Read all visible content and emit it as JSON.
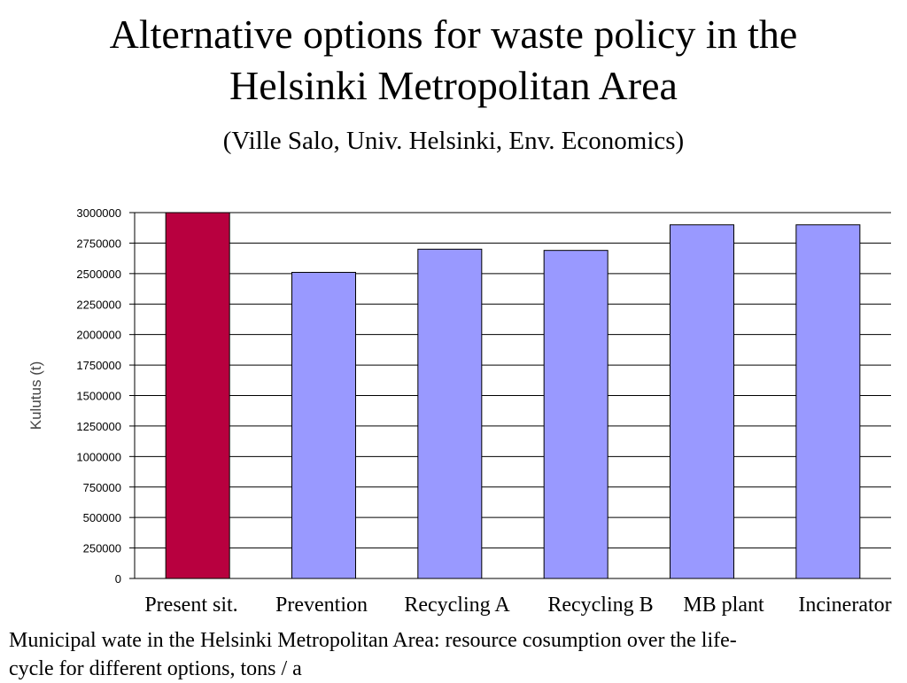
{
  "slide": {
    "title_line1": "Alternative options for waste policy in the",
    "title_line2": "Helsinki Metropolitan Area",
    "subtitle": "(Ville Salo, Univ. Helsinki, Env. Economics)",
    "caption_line1": "Municipal wate in the Helsinki Metropolitan Area: resource cosumption over the life-",
    "caption_line2": "cycle for different options, tons / a"
  },
  "chart_data": {
    "type": "bar",
    "categories": [
      "Present sit.",
      "Prevention",
      "Recycling A",
      "Recycling B",
      "MB plant",
      "Incinerator"
    ],
    "values": [
      3000000,
      2510000,
      2700000,
      2690000,
      2900000,
      2900000
    ],
    "bar_colors": [
      "#b8003f",
      "#9999ff",
      "#9999ff",
      "#9999ff",
      "#9999ff",
      "#9999ff"
    ],
    "ylabel": "Kulutus (t)",
    "xlabel": "",
    "ylim": [
      0,
      3000000
    ],
    "yticks": [
      "0",
      "250000",
      "500000",
      "750000",
      "1000000",
      "1250000",
      "1500000",
      "1750000",
      "2000000",
      "2250000",
      "2500000",
      "2750000",
      "3000000"
    ],
    "grid": true,
    "legend": "none"
  }
}
